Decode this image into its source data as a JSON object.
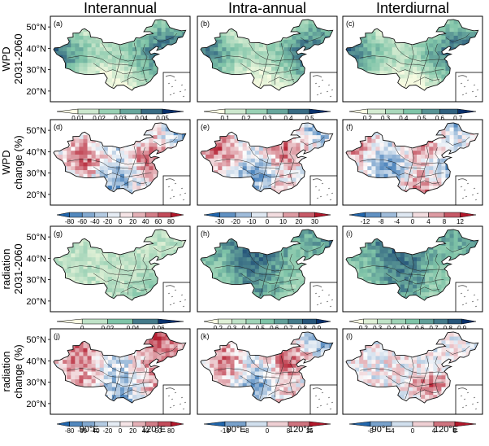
{
  "chart_data": {
    "type": "heatmap",
    "title": "",
    "columns": [
      "Interannual",
      "Intra-annual",
      "Interdiurnal"
    ],
    "rows": [
      {
        "label": [
          "WPD",
          "2031-2060"
        ],
        "key": "wpd_future"
      },
      {
        "label": [
          "WPD",
          "change (%)"
        ],
        "key": "wpd_change"
      },
      {
        "label": [
          "radiation",
          "2031-2060"
        ],
        "key": "rad_future"
      },
      {
        "label": [
          "radiation",
          "change (%)"
        ],
        "key": "rad_change"
      }
    ],
    "panel_labels": [
      "(a)",
      "(b)",
      "(c)",
      "(d)",
      "(e)",
      "(f)",
      "(g)",
      "(h)",
      "(i)",
      "(j)",
      "(k)",
      "(l)"
    ],
    "lat_ticks": [
      "50°N",
      "40°N",
      "30°N",
      "20°N"
    ],
    "lon_ticks": [
      "90°E",
      "120°E"
    ],
    "xlim": [
      72,
      137
    ],
    "ylim": [
      15,
      55
    ],
    "colorbars": [
      [
        "0.01",
        "0.02",
        "0.03",
        "0.04",
        "0.05"
      ],
      [
        "0.1",
        "0.2",
        "0.3",
        "0.4",
        "0.5"
      ],
      [
        "0.2",
        "0.3",
        "0.4",
        "0.5",
        "0.6",
        "0.7"
      ],
      [
        "-80",
        "-60",
        "-40",
        "-20",
        "0",
        "20",
        "40",
        "60",
        "80"
      ],
      [
        "-30",
        "-20",
        "-10",
        "0",
        "10",
        "20",
        "30"
      ],
      [
        "-12",
        "-8",
        "-4",
        "0",
        "4",
        "8",
        "12"
      ],
      [
        "0",
        "0.02",
        "0.04",
        "0.06"
      ],
      [
        "0.2",
        "0.3",
        "0.4",
        "0.5",
        "0.6",
        "0.7",
        "0.8",
        "0.9"
      ],
      [
        "0.2",
        "0.3",
        "0.4",
        "0.5",
        "0.6",
        "0.7",
        "0.8",
        "0.9"
      ],
      [
        "-80",
        "-60",
        "-40",
        "-20",
        "0",
        "20",
        "40",
        "60",
        "80"
      ],
      [
        "-16",
        "-8",
        "0",
        "8",
        "16"
      ],
      [
        "-8",
        "-4",
        "0",
        "4",
        "8"
      ]
    ],
    "dominant_value": [
      0.025,
      0.25,
      0.4,
      5,
      0,
      3,
      0.03,
      0.55,
      0.55,
      10,
      2,
      3
    ],
    "scales": [
      {
        "type": "seq",
        "min": 0.005,
        "max": 0.055
      },
      {
        "type": "seq",
        "min": 0.05,
        "max": 0.55
      },
      {
        "type": "seq",
        "min": 0.15,
        "max": 0.75
      },
      {
        "type": "div",
        "min": -90,
        "max": 90
      },
      {
        "type": "div",
        "min": -35,
        "max": 35
      },
      {
        "type": "div",
        "min": -14,
        "max": 14
      },
      {
        "type": "seq",
        "min": -0.005,
        "max": 0.065
      },
      {
        "type": "seq",
        "min": 0.15,
        "max": 0.95
      },
      {
        "type": "seq",
        "min": 0.15,
        "max": 0.95
      },
      {
        "type": "div",
        "min": -90,
        "max": 90
      },
      {
        "type": "div",
        "min": -20,
        "max": 20
      },
      {
        "type": "div",
        "min": -10,
        "max": 10
      }
    ],
    "colors": {
      "seq_low": "#ffffe5",
      "seq_mid": "#7fc4a8",
      "seq_high": "#08306b",
      "div_low": "#2166ac",
      "div_mid": "#fdfdfd",
      "div_high": "#b2182b"
    }
  }
}
